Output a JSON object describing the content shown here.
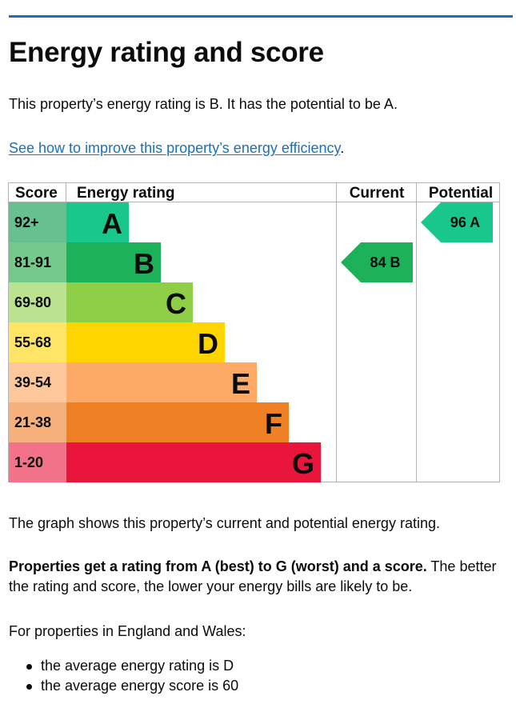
{
  "page": {
    "title": "Energy rating and score",
    "intro": "This property’s energy rating is B. It has the potential to be A.",
    "link_text": "See how to improve this property’s energy efficiency",
    "link_suffix": ".",
    "graph_note": "The graph shows this property’s current and potential energy rating.",
    "rating_bold": "Properties get a rating from A (best) to G (worst) and a score.",
    "rating_rest": " The better the rating and score, the lower your energy bills are likely to be.",
    "england_wales": "For properties in England and Wales:",
    "averages": [
      "the average energy rating is D",
      "the average energy score is 60"
    ]
  },
  "chart_data": {
    "type": "bar",
    "headers": {
      "score": "Score",
      "rating": "Energy rating",
      "current": "Current",
      "potential": "Potential"
    },
    "bands": [
      {
        "band": "A",
        "range": "92+",
        "color": "#008054",
        "score_bg": "#66c08f",
        "bar": "#19c68c"
      },
      {
        "band": "B",
        "range": "81-91",
        "color": "#19b459",
        "score_bg": "#75ca8b",
        "bar": "#1db25a"
      },
      {
        "band": "C",
        "range": "69-80",
        "color": "#8dce46",
        "score_bg": "#bbe28e",
        "bar": "#8ecf47"
      },
      {
        "band": "D",
        "range": "55-68",
        "color": "#ffd500",
        "score_bg": "#ffe466",
        "bar": "#ffd500"
      },
      {
        "band": "E",
        "range": "39-54",
        "color": "#fcaa65",
        "score_bg": "#fdc79b",
        "bar": "#fcaa65"
      },
      {
        "band": "F",
        "range": "21-38",
        "color": "#ef8023",
        "score_bg": "#f5b07b",
        "bar": "#ef8023"
      },
      {
        "band": "G",
        "range": "1-20",
        "color": "#e9153b",
        "score_bg": "#f17289",
        "bar": "#e9153b"
      }
    ],
    "current": {
      "score": 84,
      "band": "B",
      "color": "#1db25a"
    },
    "potential": {
      "score": 96,
      "band": "A",
      "color": "#19c68c"
    }
  }
}
